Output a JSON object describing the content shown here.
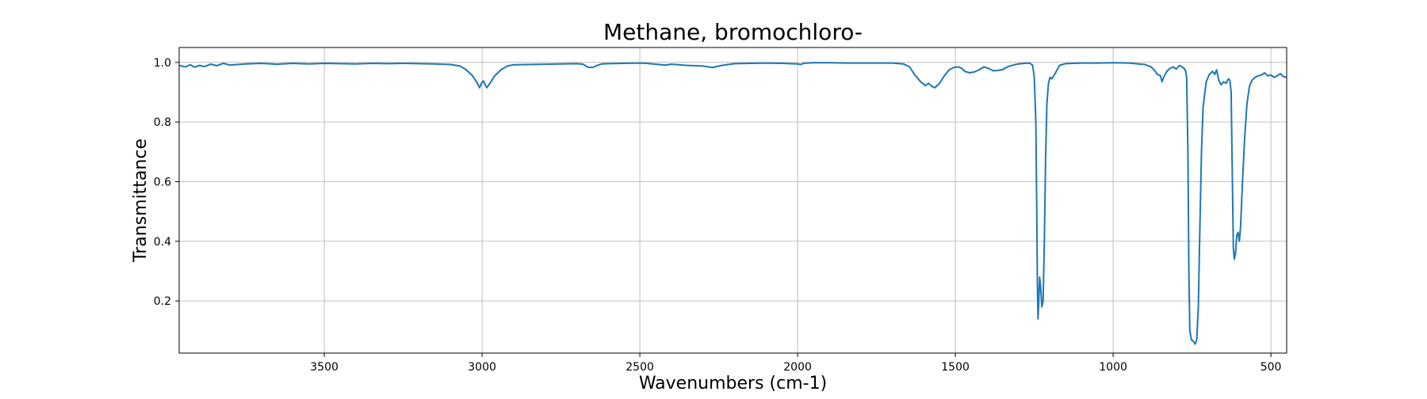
{
  "chart_data": {
    "type": "line",
    "title": "Methane, bromochloro-",
    "xlabel": "Wavenumbers (cm-1)",
    "ylabel": "Transmittance",
    "xlim": [
      3960,
      450
    ],
    "ylim": [
      0.025,
      1.05
    ],
    "x_reversed": true,
    "grid": true,
    "legend": "none",
    "x_ticks": [
      {
        "value": 3500,
        "label": "3500"
      },
      {
        "value": 3000,
        "label": "3000"
      },
      {
        "value": 2500,
        "label": "2500"
      },
      {
        "value": 2000,
        "label": "2000"
      },
      {
        "value": 1500,
        "label": "1500"
      },
      {
        "value": 1000,
        "label": "1000"
      },
      {
        "value": 500,
        "label": "500"
      }
    ],
    "y_ticks": [
      {
        "value": 0.2,
        "label": "0.2"
      },
      {
        "value": 0.4,
        "label": "0.4"
      },
      {
        "value": 0.6,
        "label": "0.6"
      },
      {
        "value": 0.8,
        "label": "0.8"
      },
      {
        "value": 1.0,
        "label": "1.0"
      }
    ],
    "series": [
      {
        "color": "#1f77b4",
        "points": [
          [
            3960,
            0.99
          ],
          [
            3940,
            0.985
          ],
          [
            3925,
            0.992
          ],
          [
            3910,
            0.984
          ],
          [
            3895,
            0.99
          ],
          [
            3880,
            0.986
          ],
          [
            3860,
            0.994
          ],
          [
            3840,
            0.989
          ],
          [
            3820,
            0.997
          ],
          [
            3800,
            0.991
          ],
          [
            3750,
            0.995
          ],
          [
            3700,
            0.997
          ],
          [
            3650,
            0.994
          ],
          [
            3600,
            0.997
          ],
          [
            3550,
            0.995
          ],
          [
            3500,
            0.997
          ],
          [
            3450,
            0.996
          ],
          [
            3400,
            0.995
          ],
          [
            3350,
            0.997
          ],
          [
            3300,
            0.996
          ],
          [
            3250,
            0.997
          ],
          [
            3200,
            0.996
          ],
          [
            3150,
            0.995
          ],
          [
            3100,
            0.993
          ],
          [
            3070,
            0.988
          ],
          [
            3050,
            0.975
          ],
          [
            3030,
            0.955
          ],
          [
            3015,
            0.93
          ],
          [
            3008,
            0.915
          ],
          [
            3002,
            0.93
          ],
          [
            2996,
            0.938
          ],
          [
            2990,
            0.925
          ],
          [
            2985,
            0.915
          ],
          [
            2975,
            0.93
          ],
          [
            2960,
            0.955
          ],
          [
            2940,
            0.975
          ],
          [
            2920,
            0.988
          ],
          [
            2900,
            0.992
          ],
          [
            2850,
            0.993
          ],
          [
            2800,
            0.994
          ],
          [
            2750,
            0.995
          ],
          [
            2700,
            0.996
          ],
          [
            2680,
            0.994
          ],
          [
            2665,
            0.984
          ],
          [
            2650,
            0.983
          ],
          [
            2635,
            0.99
          ],
          [
            2620,
            0.995
          ],
          [
            2600,
            0.996
          ],
          [
            2550,
            0.997
          ],
          [
            2500,
            0.998
          ],
          [
            2480,
            0.997
          ],
          [
            2450,
            0.994
          ],
          [
            2420,
            0.991
          ],
          [
            2400,
            0.994
          ],
          [
            2350,
            0.99
          ],
          [
            2300,
            0.988
          ],
          [
            2270,
            0.983
          ],
          [
            2240,
            0.99
          ],
          [
            2200,
            0.996
          ],
          [
            2150,
            0.997
          ],
          [
            2100,
            0.998
          ],
          [
            2050,
            0.997
          ],
          [
            2000,
            0.995
          ],
          [
            1990,
            0.993
          ],
          [
            1980,
            0.997
          ],
          [
            1950,
            0.999
          ],
          [
            1900,
            0.999
          ],
          [
            1850,
            0.998
          ],
          [
            1800,
            0.998
          ],
          [
            1750,
            0.998
          ],
          [
            1700,
            0.998
          ],
          [
            1665,
            0.995
          ],
          [
            1645,
            0.985
          ],
          [
            1630,
            0.96
          ],
          [
            1610,
            0.935
          ],
          [
            1595,
            0.922
          ],
          [
            1585,
            0.93
          ],
          [
            1575,
            0.92
          ],
          [
            1565,
            0.915
          ],
          [
            1550,
            0.93
          ],
          [
            1535,
            0.955
          ],
          [
            1520,
            0.975
          ],
          [
            1505,
            0.983
          ],
          [
            1490,
            0.985
          ],
          [
            1480,
            0.98
          ],
          [
            1470,
            0.97
          ],
          [
            1455,
            0.965
          ],
          [
            1440,
            0.968
          ],
          [
            1425,
            0.975
          ],
          [
            1410,
            0.985
          ],
          [
            1395,
            0.98
          ],
          [
            1380,
            0.972
          ],
          [
            1365,
            0.973
          ],
          [
            1350,
            0.976
          ],
          [
            1335,
            0.985
          ],
          [
            1320,
            0.99
          ],
          [
            1300,
            0.995
          ],
          [
            1280,
            0.997
          ],
          [
            1265,
            0.998
          ],
          [
            1255,
            0.99
          ],
          [
            1250,
            0.95
          ],
          [
            1245,
            0.8
          ],
          [
            1242,
            0.5
          ],
          [
            1240,
            0.25
          ],
          [
            1238,
            0.14
          ],
          [
            1235,
            0.22
          ],
          [
            1233,
            0.28
          ],
          [
            1230,
            0.25
          ],
          [
            1226,
            0.18
          ],
          [
            1222,
            0.2
          ],
          [
            1218,
            0.4
          ],
          [
            1214,
            0.68
          ],
          [
            1210,
            0.86
          ],
          [
            1205,
            0.93
          ],
          [
            1200,
            0.95
          ],
          [
            1195,
            0.945
          ],
          [
            1188,
            0.955
          ],
          [
            1180,
            0.97
          ],
          [
            1170,
            0.99
          ],
          [
            1150,
            0.996
          ],
          [
            1100,
            0.998
          ],
          [
            1050,
            0.998
          ],
          [
            1000,
            0.999
          ],
          [
            950,
            0.998
          ],
          [
            900,
            0.993
          ],
          [
            880,
            0.985
          ],
          [
            870,
            0.975
          ],
          [
            860,
            0.96
          ],
          [
            850,
            0.955
          ],
          [
            845,
            0.935
          ],
          [
            840,
            0.95
          ],
          [
            830,
            0.97
          ],
          [
            820,
            0.98
          ],
          [
            810,
            0.985
          ],
          [
            800,
            0.978
          ],
          [
            790,
            0.99
          ],
          [
            782,
            0.985
          ],
          [
            775,
            0.98
          ],
          [
            770,
            0.97
          ],
          [
            767,
            0.95
          ],
          [
            763,
            0.7
          ],
          [
            760,
            0.3
          ],
          [
            757,
            0.1
          ],
          [
            752,
            0.07
          ],
          [
            746,
            0.065
          ],
          [
            740,
            0.055
          ],
          [
            735,
            0.07
          ],
          [
            730,
            0.18
          ],
          [
            725,
            0.45
          ],
          [
            720,
            0.7
          ],
          [
            715,
            0.85
          ],
          [
            705,
            0.935
          ],
          [
            695,
            0.96
          ],
          [
            685,
            0.97
          ],
          [
            678,
            0.96
          ],
          [
            672,
            0.975
          ],
          [
            665,
            0.94
          ],
          [
            658,
            0.925
          ],
          [
            650,
            0.935
          ],
          [
            642,
            0.93
          ],
          [
            635,
            0.945
          ],
          [
            630,
            0.94
          ],
          [
            626,
            0.9
          ],
          [
            622,
            0.6
          ],
          [
            619,
            0.38
          ],
          [
            616,
            0.34
          ],
          [
            612,
            0.36
          ],
          [
            608,
            0.42
          ],
          [
            604,
            0.43
          ],
          [
            600,
            0.4
          ],
          [
            596,
            0.45
          ],
          [
            590,
            0.6
          ],
          [
            583,
            0.75
          ],
          [
            576,
            0.86
          ],
          [
            568,
            0.92
          ],
          [
            560,
            0.94
          ],
          [
            550,
            0.95
          ],
          [
            540,
            0.955
          ],
          [
            530,
            0.958
          ],
          [
            520,
            0.965
          ],
          [
            510,
            0.955
          ],
          [
            500,
            0.958
          ],
          [
            490,
            0.95
          ],
          [
            480,
            0.955
          ],
          [
            470,
            0.962
          ],
          [
            460,
            0.952
          ],
          [
            450,
            0.95
          ]
        ]
      }
    ]
  }
}
